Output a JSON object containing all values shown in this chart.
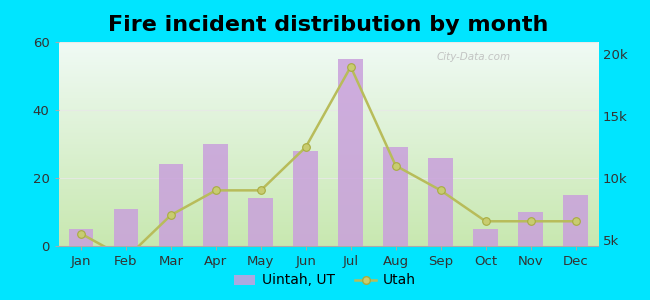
{
  "title": "Fire incident distribution by month",
  "months": [
    "Jan",
    "Feb",
    "Mar",
    "Apr",
    "May",
    "Jun",
    "Jul",
    "Aug",
    "Sep",
    "Oct",
    "Nov",
    "Dec"
  ],
  "uintah_values": [
    5,
    11,
    24,
    30,
    14,
    28,
    55,
    29,
    26,
    5,
    10,
    15
  ],
  "utah_values": [
    5500,
    3500,
    7000,
    9000,
    9000,
    12500,
    19000,
    11000,
    9000,
    6500,
    6500,
    6500
  ],
  "bar_color": "#c9a0dc",
  "bar_alpha": 0.85,
  "line_color": "#b8bc5a",
  "line_marker": "o",
  "marker_facecolor": "#c8cc70",
  "marker_edgecolor": "#a8ac40",
  "bg_outer": "#00e5ff",
  "grad_bottom": "#c8e8b0",
  "grad_top": "#f0faf5",
  "left_ylim": [
    0,
    60
  ],
  "left_yticks": [
    0,
    20,
    40,
    60
  ],
  "right_ylim": [
    4500,
    21000
  ],
  "right_yticks": [
    5000,
    10000,
    15000,
    20000
  ],
  "right_yticklabels": [
    "5k",
    "10k",
    "15k",
    "20k"
  ],
  "title_fontsize": 16,
  "tick_fontsize": 9.5,
  "legend_fontsize": 10,
  "watermark": "City-Data.com",
  "hline_color": "#e8e8e8",
  "spine_color": "#aaaaaa"
}
